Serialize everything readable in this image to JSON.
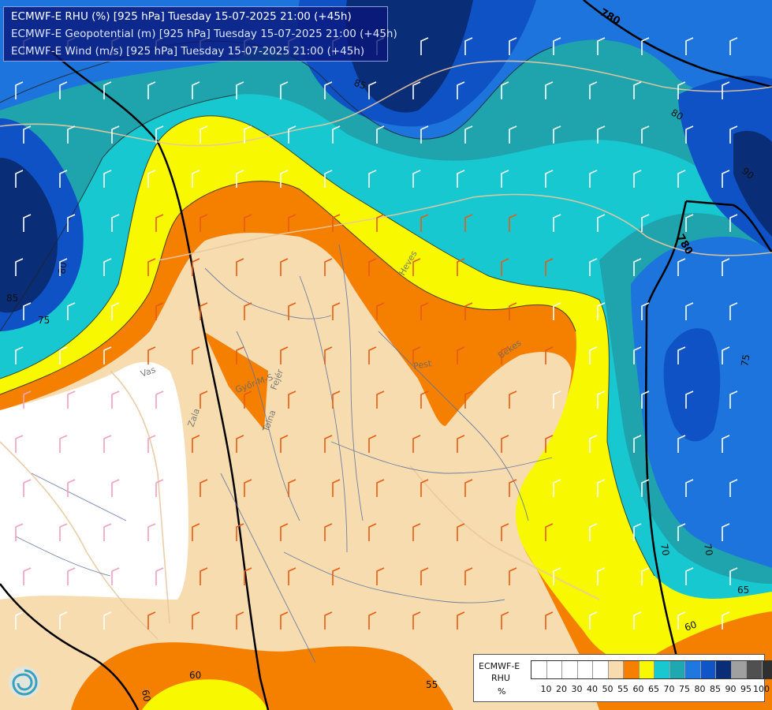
{
  "header": {
    "line1": "ECMWF-E RHU (%) [925 hPa] Tuesday 15-07-2025 21:00 (+45h)",
    "line2": "ECMWF-E Geopotential (m) [925 hPa] Tuesday 15-07-2025 21:00 (+45h)",
    "line3": "ECMWF-E Wind (m/s) [925 hPa] Tuesday 15-07-2025 21:00 (+45h)"
  },
  "legend": {
    "title1": "ECMWF-E",
    "title2": "RHU",
    "unit": "%",
    "levels": [
      "10",
      "20",
      "30",
      "40",
      "50",
      "55",
      "60",
      "65",
      "70",
      "75",
      "80",
      "85",
      "90",
      "95",
      "100"
    ],
    "colors": [
      "#ffffff",
      "#ffffff",
      "#ffffff",
      "#ffffff",
      "#ffffff",
      "#f8dcb0",
      "#f77f00",
      "#f8f800",
      "#18c8d0",
      "#20a8b0",
      "#1e78e0",
      "#0f55c8",
      "#0a2d78",
      "#a0a0a0",
      "#505050",
      "#303030"
    ]
  },
  "colors": {
    "rh_55": "#f7dcb0",
    "rh_60": "#f58000",
    "rh_65": "#f8f800",
    "rh_70": "#17c8d0",
    "rh_75": "#1fa4ae",
    "rh_80": "#1c74dc",
    "rh_85": "#0f52c6",
    "rh_90": "#0a2d78",
    "dry": "#ffffff"
  },
  "contour_labels": {
    "geopotential": [
      "780",
      "780"
    ],
    "rh": [
      "85",
      "80",
      "75",
      "70",
      "90",
      "85",
      "80",
      "75",
      "70",
      "65",
      "60",
      "60",
      "55",
      "60",
      "65",
      "75",
      "85"
    ]
  },
  "region_labels": [
    "Vas",
    "Győr-M-S",
    "Zala",
    "Tolna",
    "Fejér",
    "Pest",
    "Heves",
    "Bekes"
  ]
}
